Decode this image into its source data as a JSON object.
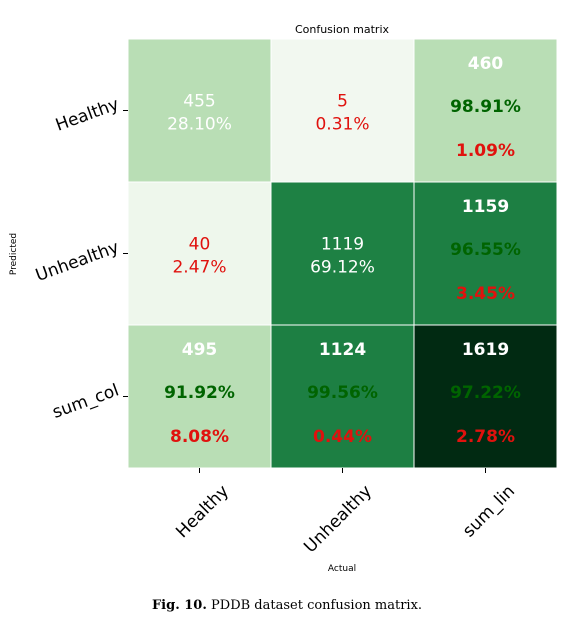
{
  "chart_data": {
    "type": "heatmap",
    "title": "Confusion matrix",
    "xlabel": "Actual",
    "ylabel": "Predicted",
    "x_ticks": [
      "Healthy",
      "Unhealthy",
      "sum_lin"
    ],
    "y_ticks": [
      "Healthy",
      "Unhealthy",
      "sum_col"
    ],
    "cells": [
      [
        {
          "lines": [
            "455",
            "28.10%"
          ],
          "colors": [
            "#ffffff",
            "#ffffff"
          ],
          "bold": false,
          "fill": "#b9deb5"
        },
        {
          "lines": [
            "5",
            "0.31%"
          ],
          "colors": [
            "#e0120e",
            "#e0120e"
          ],
          "bold": false,
          "fill": "#f2f8f0"
        },
        {
          "lines": [
            "460",
            "98.91%",
            "1.09%"
          ],
          "colors": [
            "#ffffff",
            "#006400",
            "#e0120e"
          ],
          "bold": true,
          "fill": "#b9deb5"
        }
      ],
      [
        {
          "lines": [
            "40",
            "2.47%"
          ],
          "colors": [
            "#e0120e",
            "#e0120e"
          ],
          "bold": false,
          "fill": "#eef7ec"
        },
        {
          "lines": [
            "1119",
            "69.12%"
          ],
          "colors": [
            "#ffffff",
            "#ffffff"
          ],
          "bold": false,
          "fill": "#1e8144"
        },
        {
          "lines": [
            "1159",
            "96.55%",
            "3.45%"
          ],
          "colors": [
            "#ffffff",
            "#006400",
            "#e0120e"
          ],
          "bold": true,
          "fill": "#1d7f43"
        }
      ],
      [
        {
          "lines": [
            "495",
            "91.92%",
            "8.08%"
          ],
          "colors": [
            "#ffffff",
            "#006400",
            "#e0120e"
          ],
          "bold": true,
          "fill": "#b9deb5"
        },
        {
          "lines": [
            "1124",
            "99.56%",
            "0.44%"
          ],
          "colors": [
            "#ffffff",
            "#006400",
            "#e0120e"
          ],
          "bold": true,
          "fill": "#1d7f43"
        },
        {
          "lines": [
            "1619",
            "97.22%",
            "2.78%"
          ],
          "colors": [
            "#ffffff",
            "#006400",
            "#e0120e"
          ],
          "bold": true,
          "fill": "#012a12"
        }
      ]
    ]
  },
  "caption": {
    "label": "Fig. 10.",
    "text": "PDDB dataset confusion matrix."
  }
}
